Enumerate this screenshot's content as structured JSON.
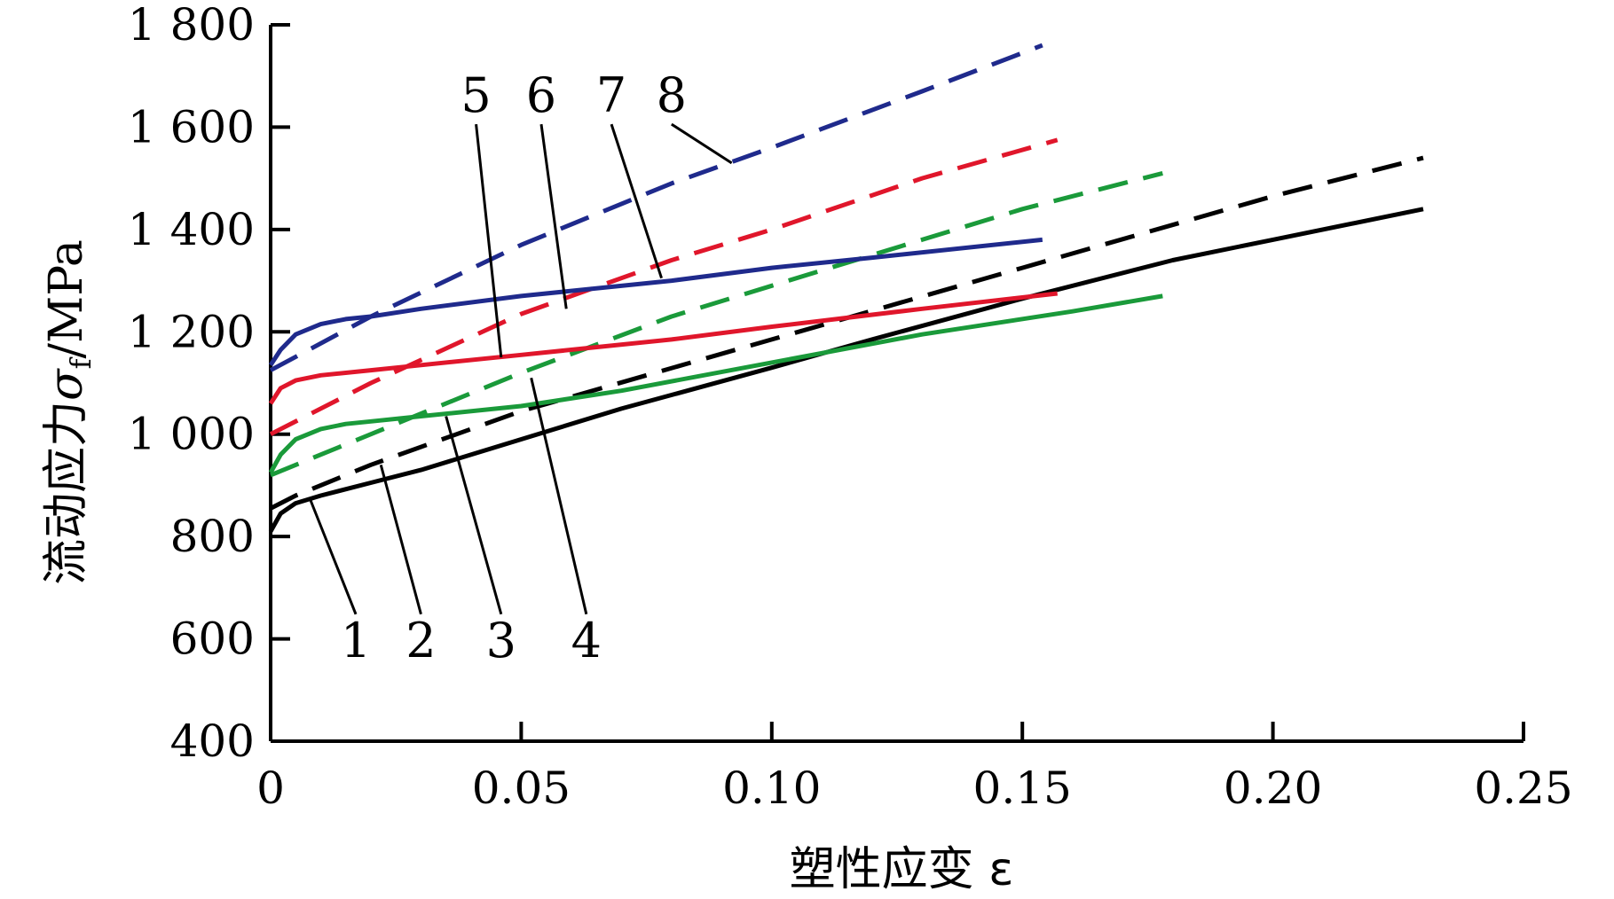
{
  "chart_data": {
    "type": "line",
    "xlabel": "塑性应变 ε",
    "ylabel_main": "流动应力",
    "ylabel_symbol": "σ",
    "ylabel_sub": "f",
    "ylabel_unit": "/MPa",
    "xlim": [
      0,
      0.25
    ],
    "ylim": [
      400,
      1800
    ],
    "x_ticks": [
      0,
      0.05,
      0.1,
      0.15,
      0.2,
      0.25
    ],
    "x_tick_labels": [
      "0",
      "0.05",
      "0.10",
      "0.15",
      "0.20",
      "0.25"
    ],
    "y_ticks": [
      400,
      600,
      800,
      1000,
      1200,
      1400,
      1600,
      1800
    ],
    "y_tick_labels": [
      "400",
      "600",
      "800",
      "1 000",
      "1 200",
      "1 400",
      "1 600",
      "1 800"
    ],
    "grid": false,
    "series": [
      {
        "label": "1",
        "color": "#000000",
        "dash": "solid",
        "x": [
          0,
          0.002,
          0.005,
          0.01,
          0.02,
          0.03,
          0.05,
          0.07,
          0.1,
          0.12,
          0.15,
          0.18,
          0.2,
          0.23
        ],
        "y": [
          810,
          845,
          865,
          880,
          905,
          930,
          990,
          1050,
          1130,
          1185,
          1265,
          1340,
          1380,
          1440
        ]
      },
      {
        "label": "2",
        "color": "#000000",
        "dash": "dashed",
        "x": [
          0,
          0.005,
          0.02,
          0.05,
          0.1,
          0.15,
          0.2,
          0.23
        ],
        "y": [
          855,
          880,
          940,
          1045,
          1185,
          1325,
          1465,
          1540
        ]
      },
      {
        "label": "3",
        "color": "#1a9a3a",
        "dash": "solid",
        "x": [
          0,
          0.002,
          0.005,
          0.01,
          0.015,
          0.02,
          0.03,
          0.05,
          0.07,
          0.1,
          0.13,
          0.16,
          0.178
        ],
        "y": [
          925,
          960,
          990,
          1010,
          1020,
          1025,
          1035,
          1055,
          1085,
          1140,
          1195,
          1240,
          1270
        ]
      },
      {
        "label": "4",
        "color": "#1a9a3a",
        "dash": "dashed",
        "x": [
          0,
          0.03,
          0.05,
          0.08,
          0.1,
          0.13,
          0.15,
          0.178
        ],
        "y": [
          920,
          1040,
          1120,
          1230,
          1290,
          1380,
          1440,
          1510
        ]
      },
      {
        "label": "5",
        "color": "#e0162b",
        "dash": "solid",
        "x": [
          0,
          0.002,
          0.005,
          0.01,
          0.02,
          0.03,
          0.05,
          0.08,
          0.1,
          0.13,
          0.157
        ],
        "y": [
          1060,
          1090,
          1105,
          1115,
          1125,
          1135,
          1155,
          1185,
          1210,
          1245,
          1275
        ]
      },
      {
        "label": "6",
        "color": "#e0162b",
        "dash": "dashed",
        "x": [
          0,
          0.02,
          0.05,
          0.08,
          0.1,
          0.13,
          0.157
        ],
        "y": [
          1000,
          1100,
          1235,
          1340,
          1400,
          1500,
          1575
        ]
      },
      {
        "label": "7",
        "color": "#1f2a8c",
        "dash": "solid",
        "x": [
          0,
          0.002,
          0.005,
          0.01,
          0.015,
          0.02,
          0.03,
          0.05,
          0.08,
          0.1,
          0.12,
          0.154
        ],
        "y": [
          1135,
          1165,
          1195,
          1215,
          1225,
          1230,
          1245,
          1270,
          1300,
          1325,
          1345,
          1380
        ]
      },
      {
        "label": "8",
        "color": "#1f2a8c",
        "dash": "dashed",
        "x": [
          0,
          0.02,
          0.05,
          0.08,
          0.1,
          0.13,
          0.154
        ],
        "y": [
          1125,
          1230,
          1370,
          1490,
          1560,
          1670,
          1760
        ]
      }
    ],
    "callouts": [
      {
        "label": "1",
        "to": [
          0.008,
          870
        ],
        "label_pos": [
          0.017,
          565
        ]
      },
      {
        "label": "2",
        "to": [
          0.022,
          940
        ],
        "label_pos": [
          0.03,
          565
        ]
      },
      {
        "label": "3",
        "to": [
          0.035,
          1035
        ],
        "label_pos": [
          0.046,
          565
        ]
      },
      {
        "label": "4",
        "to": [
          0.052,
          1110
        ],
        "label_pos": [
          0.063,
          565
        ]
      },
      {
        "label": "5",
        "to": [
          0.046,
          1150
        ],
        "label_pos": [
          0.041,
          1630
        ]
      },
      {
        "label": "6",
        "to": [
          0.059,
          1245
        ],
        "label_pos": [
          0.054,
          1630
        ]
      },
      {
        "label": "7",
        "to": [
          0.078,
          1305
        ],
        "label_pos": [
          0.068,
          1630
        ]
      },
      {
        "label": "8",
        "to": [
          0.092,
          1530
        ],
        "label_pos": [
          0.08,
          1630
        ]
      }
    ]
  }
}
